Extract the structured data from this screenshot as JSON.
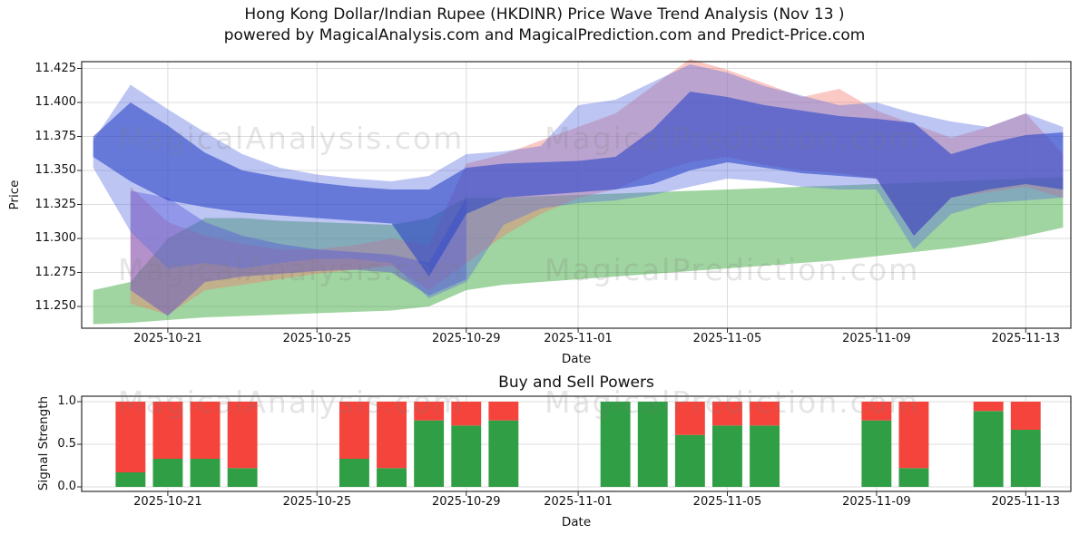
{
  "page": {
    "title": "Hong Kong Dollar/Indian Rupee (HKDINR) Price Wave Trend Analysis (Nov 13 )",
    "subtitle": "powered by MagicalAnalysis.com and MagicalPrediction.com and Predict-Price.com"
  },
  "watermarks": {
    "left": "MagicalAnalysis.com",
    "right": "MagicalPrediction.com"
  },
  "chart_data": [
    {
      "id": "price-wave-trend",
      "type": "area",
      "ylabel": "Price",
      "xlabel": "Date",
      "grid": true,
      "x_day0_date": "2025-10-19",
      "xlim_days": [
        -0.31,
        26.21
      ],
      "ylim": [
        11.234,
        11.43
      ],
      "ytick_values": [
        11.25,
        11.275,
        11.3,
        11.325,
        11.35,
        11.375,
        11.4,
        11.425
      ],
      "ytick_labels": [
        "11.250",
        "11.275",
        "11.300",
        "11.325",
        "11.350",
        "11.375",
        "11.400",
        "11.425"
      ],
      "xtick_days": [
        2,
        6,
        10,
        13,
        17,
        21,
        25
      ],
      "xtick_labels": [
        "2025-10-21",
        "2025-10-25",
        "2025-10-29",
        "2025-11-01",
        "2025-11-05",
        "2025-11-09",
        "2025-11-13"
      ],
      "bands": [
        {
          "name": "green-support-band",
          "color": "#2ca02c",
          "opacity": 0.45,
          "upper": [
            11.262,
            11.268,
            11.3,
            11.315,
            11.315,
            11.313,
            11.312,
            11.311,
            11.31,
            11.315,
            11.33,
            11.33,
            11.331,
            11.332,
            11.333,
            11.334,
            11.335,
            11.336,
            11.337,
            11.338,
            11.339,
            11.34,
            11.341,
            11.342,
            11.343,
            11.344,
            11.345
          ],
          "lower": [
            11.237,
            11.238,
            11.24,
            11.242,
            11.243,
            11.244,
            11.245,
            11.246,
            11.247,
            11.25,
            11.262,
            11.266,
            11.268,
            11.27,
            11.272,
            11.274,
            11.276,
            11.278,
            11.28,
            11.282,
            11.284,
            11.287,
            11.29,
            11.293,
            11.297,
            11.302,
            11.308
          ]
        },
        {
          "name": "red-forecast-band",
          "color": "#f4796b",
          "opacity": 0.4,
          "upper": [
            null,
            11.338,
            11.312,
            11.302,
            11.296,
            11.292,
            11.292,
            11.295,
            11.3,
            11.295,
            11.355,
            11.362,
            11.372,
            11.382,
            11.392,
            11.412,
            11.432,
            11.424,
            11.414,
            11.404,
            11.41,
            11.394,
            11.384,
            11.374,
            11.382,
            11.392,
            11.362
          ],
          "lower": [
            null,
            11.252,
            11.244,
            11.262,
            11.266,
            11.27,
            11.274,
            11.277,
            11.28,
            11.262,
            11.282,
            11.302,
            11.318,
            11.33,
            11.336,
            11.348,
            11.356,
            11.36,
            11.354,
            11.35,
            11.348,
            11.344,
            11.302,
            11.33,
            11.334,
            11.338,
            11.33
          ]
        },
        {
          "name": "purple-wave-band",
          "color": "#4b3fd4",
          "opacity": 0.4,
          "upper": [
            null,
            11.335,
            11.33,
            11.312,
            11.302,
            11.296,
            11.292,
            11.29,
            11.288,
            11.282,
            11.33,
            null,
            null,
            null,
            null,
            null,
            null,
            null,
            null,
            null,
            null,
            null,
            null,
            null,
            null,
            null,
            null
          ],
          "lower": [
            null,
            11.262,
            11.243,
            11.268,
            11.272,
            11.274,
            11.276,
            11.277,
            11.275,
            11.258,
            11.27,
            null,
            null,
            null,
            null,
            null,
            null,
            null,
            null,
            null,
            null,
            null,
            null,
            null,
            null,
            null,
            null
          ]
        },
        {
          "name": "blue-envelope-band",
          "color": "#5a6fe0",
          "opacity": 0.4,
          "upper": [
            11.372,
            11.413,
            11.395,
            11.378,
            11.362,
            11.352,
            11.347,
            11.344,
            11.342,
            11.346,
            11.362,
            11.364,
            11.368,
            11.398,
            11.402,
            11.415,
            11.428,
            11.422,
            11.412,
            11.405,
            11.398,
            11.4,
            11.392,
            11.386,
            11.382,
            11.392,
            11.382
          ],
          "lower": [
            11.352,
            11.305,
            11.278,
            11.282,
            11.278,
            11.282,
            11.285,
            11.285,
            11.282,
            11.256,
            11.268,
            11.31,
            11.322,
            11.326,
            11.328,
            11.332,
            11.338,
            11.344,
            11.342,
            11.338,
            11.336,
            11.336,
            11.292,
            11.318,
            11.326,
            11.328,
            11.33
          ]
        },
        {
          "name": "blue-main-trend-band",
          "color": "#2b46c8",
          "opacity": 0.6,
          "upper": [
            11.375,
            11.4,
            11.383,
            11.363,
            11.35,
            11.345,
            11.341,
            11.338,
            11.336,
            11.336,
            11.352,
            11.355,
            11.356,
            11.357,
            11.36,
            11.38,
            11.408,
            11.404,
            11.398,
            11.394,
            11.39,
            11.388,
            11.385,
            11.362,
            11.37,
            11.376,
            11.378
          ],
          "lower": [
            11.36,
            11.342,
            11.328,
            11.323,
            11.319,
            11.317,
            11.315,
            11.313,
            11.311,
            11.272,
            11.318,
            11.33,
            11.332,
            11.334,
            11.336,
            11.34,
            11.35,
            11.356,
            11.352,
            11.348,
            11.346,
            11.344,
            11.302,
            11.33,
            11.336,
            11.34,
            11.336
          ]
        }
      ]
    },
    {
      "id": "buy-sell-powers",
      "type": "bar",
      "title": "Buy and Sell Powers",
      "ylabel": "Signal Strength",
      "xlabel": "Date",
      "grid": true,
      "stacked": true,
      "x_day0_date": "2025-10-19",
      "xlim_days": [
        -0.31,
        26.21
      ],
      "ylim": [
        -0.053,
        1.064
      ],
      "ytick_values": [
        0.0,
        0.5,
        1.0
      ],
      "ytick_labels": [
        "0.0",
        "0.5",
        "1.0"
      ],
      "xtick_days": [
        2,
        6,
        10,
        13,
        17,
        21,
        25
      ],
      "xtick_labels": [
        "2025-10-21",
        "2025-10-25",
        "2025-10-29",
        "2025-11-01",
        "2025-11-05",
        "2025-11-09",
        "2025-11-13"
      ],
      "bar_width_days": 0.8,
      "series": [
        {
          "name": "Buy",
          "color": "#2f9e44"
        },
        {
          "name": "Sell",
          "color": "#f4443c"
        }
      ],
      "bars": [
        {
          "date": "2025-10-20",
          "day": 1,
          "buy": 0.17,
          "sell": 0.83
        },
        {
          "date": "2025-10-21",
          "day": 2,
          "buy": 0.33,
          "sell": 0.67
        },
        {
          "date": "2025-10-22",
          "day": 3,
          "buy": 0.33,
          "sell": 0.67
        },
        {
          "date": "2025-10-23",
          "day": 4,
          "buy": 0.22,
          "sell": 0.78
        },
        {
          "date": "2025-10-26",
          "day": 7,
          "buy": 0.33,
          "sell": 0.67
        },
        {
          "date": "2025-10-27",
          "day": 8,
          "buy": 0.22,
          "sell": 0.78
        },
        {
          "date": "2025-10-28",
          "day": 9,
          "buy": 0.78,
          "sell": 0.22
        },
        {
          "date": "2025-10-29",
          "day": 10,
          "buy": 0.72,
          "sell": 0.28
        },
        {
          "date": "2025-10-30",
          "day": 11,
          "buy": 0.78,
          "sell": 0.22
        },
        {
          "date": "2025-11-02",
          "day": 14,
          "buy": 1.0,
          "sell": 0.0
        },
        {
          "date": "2025-11-03",
          "day": 15,
          "buy": 1.0,
          "sell": 0.0
        },
        {
          "date": "2025-11-04",
          "day": 16,
          "buy": 0.61,
          "sell": 0.39
        },
        {
          "date": "2025-11-05",
          "day": 17,
          "buy": 0.72,
          "sell": 0.28
        },
        {
          "date": "2025-11-06",
          "day": 18,
          "buy": 0.72,
          "sell": 0.28
        },
        {
          "date": "2025-11-09",
          "day": 21,
          "buy": 0.78,
          "sell": 0.22
        },
        {
          "date": "2025-11-10",
          "day": 22,
          "buy": 0.22,
          "sell": 0.78
        },
        {
          "date": "2025-11-12",
          "day": 24,
          "buy": 0.89,
          "sell": 0.11
        },
        {
          "date": "2025-11-13",
          "day": 25,
          "buy": 0.67,
          "sell": 0.33
        }
      ]
    }
  ]
}
